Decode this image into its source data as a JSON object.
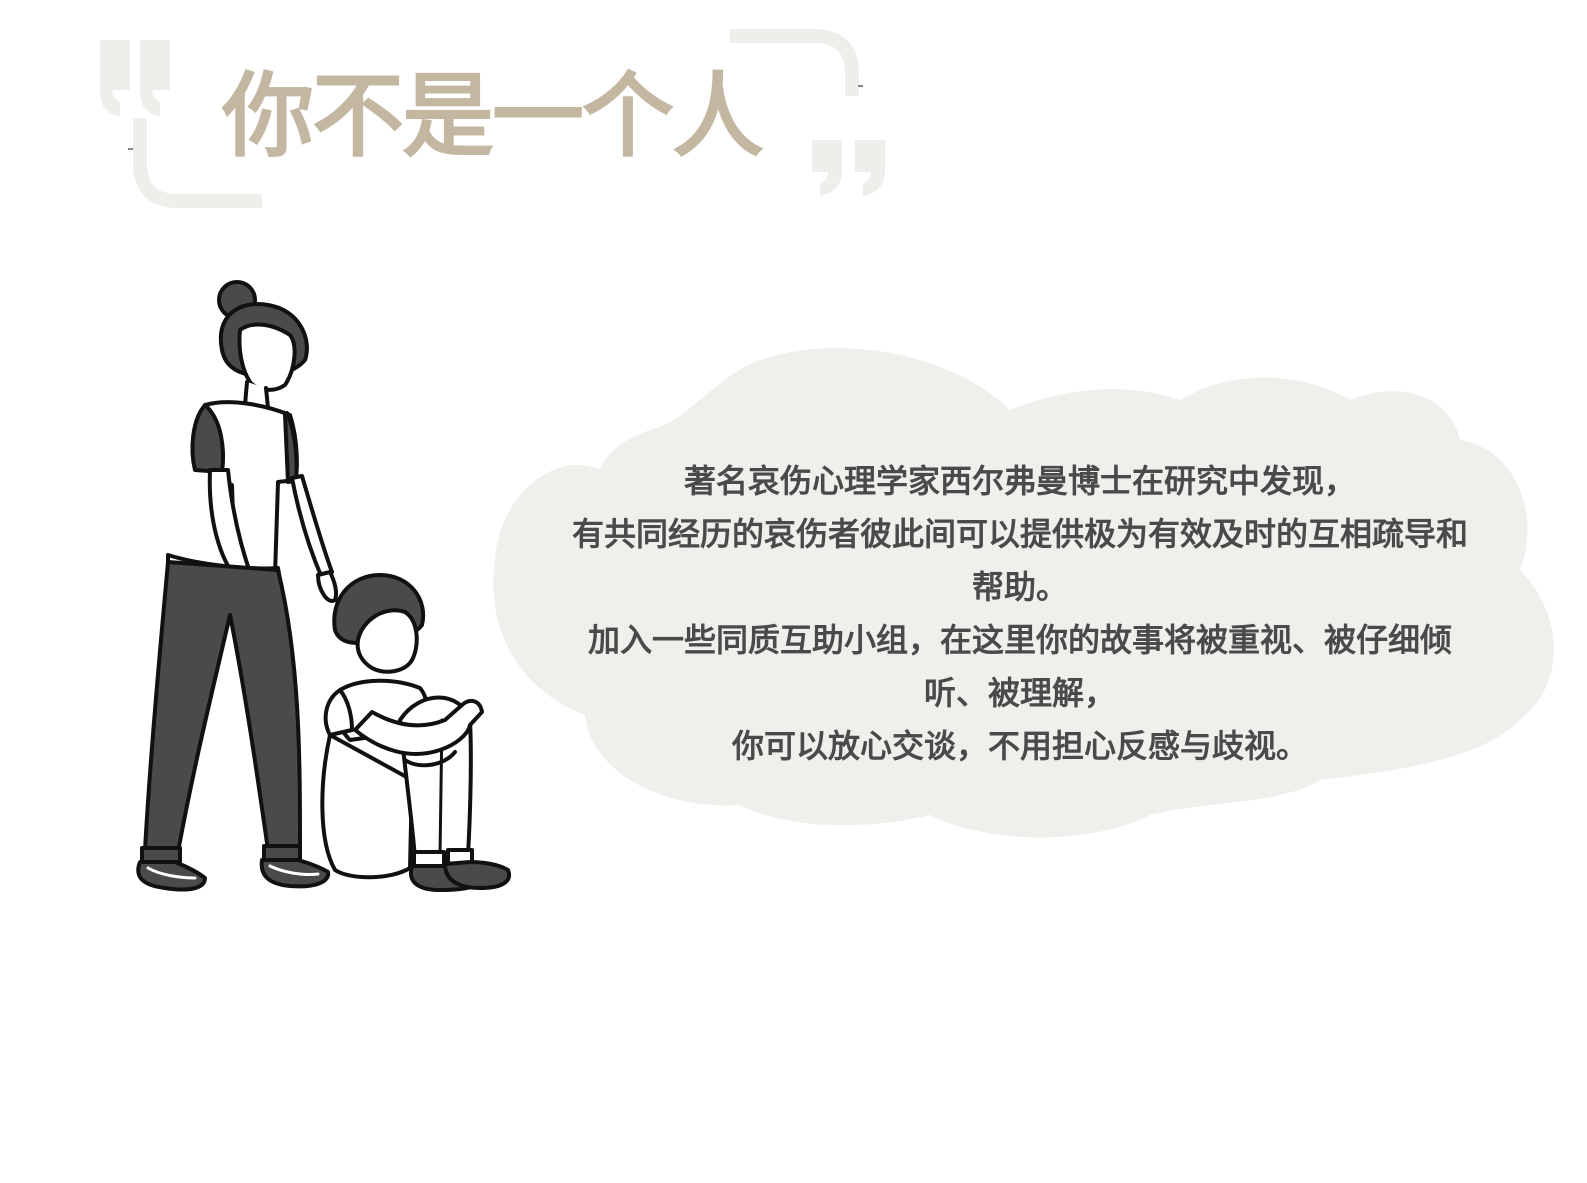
{
  "title": "你不是一个人",
  "paragraphs": [
    "著名哀伤心理学家西尔弗曼博士在研究中发现，",
    "有共同经历的哀伤者彼此间可以提供极为有效及时的互相疏导和帮助。",
    "加入一些同质互助小组，在这里你的故事将被重视、被仔细倾听、被理解，",
    "你可以放心交谈，不用担心反感与歧视。"
  ],
  "colors": {
    "title": "#c4b7a1",
    "quote_marks": "#efeeea",
    "cloud": "#f0efec",
    "text": "#4a4a4a",
    "figure_dark": "#4a4a4a"
  },
  "illustration": {
    "description_icons": [
      "standing-woman-icon",
      "sitting-child-icon"
    ]
  }
}
